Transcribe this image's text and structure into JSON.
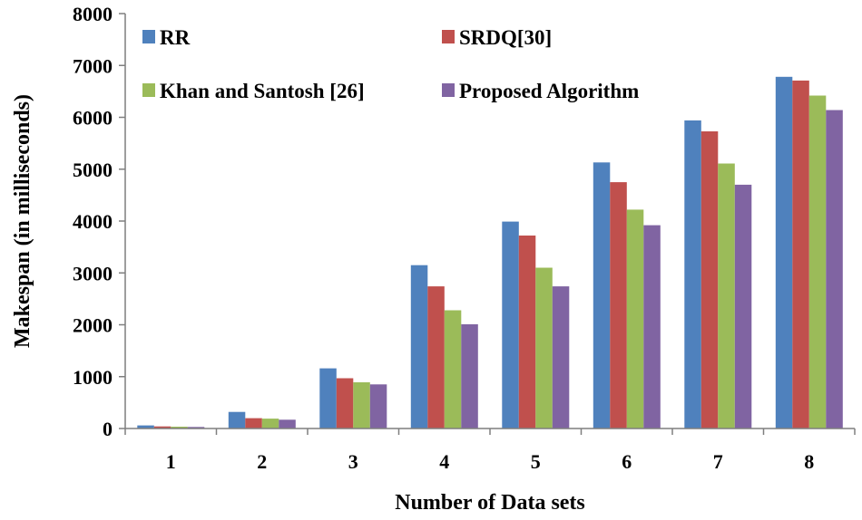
{
  "chart_data": {
    "type": "bar",
    "title": "",
    "xlabel": "Number of Data sets",
    "ylabel": "Makespan (in milliseconds)",
    "ylim": [
      0,
      8000
    ],
    "yticks": [
      0,
      1000,
      2000,
      3000,
      4000,
      5000,
      6000,
      7000,
      8000
    ],
    "yticks_labels": [
      "0",
      "1000",
      "2000",
      "3000",
      "4000",
      "5000",
      "6000",
      "7000",
      "8000"
    ],
    "categories": [
      "1",
      "2",
      "3",
      "4",
      "5",
      "6",
      "7",
      "8"
    ],
    "grid": false,
    "legend_position": "top-left, inside plot",
    "series": [
      {
        "name": "RR",
        "color": "#4f81bd",
        "values": [
          60,
          320,
          1160,
          3150,
          3990,
          5130,
          5940,
          6780
        ]
      },
      {
        "name": "SRDQ[30]",
        "color": "#c0504d",
        "values": [
          40,
          200,
          970,
          2740,
          3720,
          4750,
          5730,
          6710
        ]
      },
      {
        "name": "Khan and Santosh [26]",
        "color": "#9bbb59",
        "values": [
          35,
          190,
          890,
          2280,
          3100,
          4220,
          5110,
          6420
        ]
      },
      {
        "name": "Proposed Algorithm",
        "color": "#8064a2",
        "values": [
          30,
          170,
          850,
          2010,
          2740,
          3920,
          4700,
          6140
        ]
      }
    ]
  }
}
